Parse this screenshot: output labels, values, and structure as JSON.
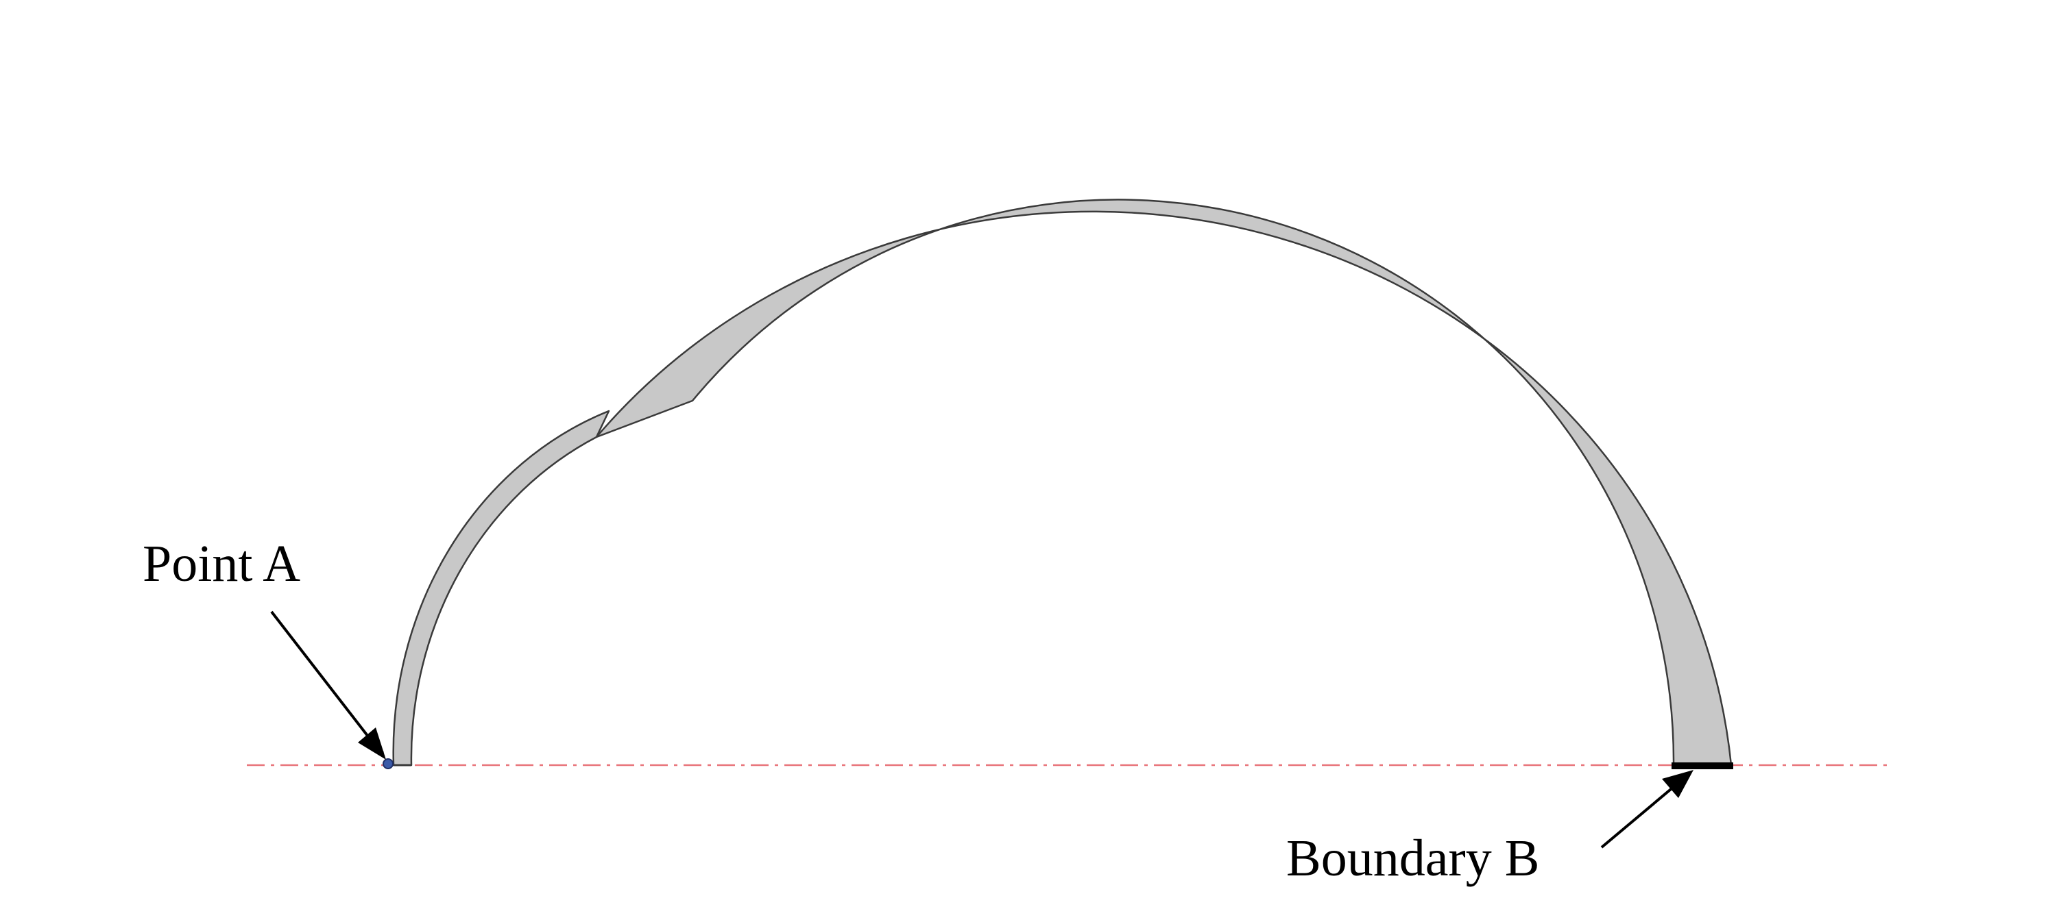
{
  "labels": {
    "point_a": "Point A",
    "boundary_b": "Boundary B"
  },
  "colors": {
    "shell_fill": "#c8c8c8",
    "shell_stroke": "#3a3a3a",
    "axis_line": "#e8747a",
    "point_marker": "#3b5aa8",
    "boundary": "#000000",
    "arrow": "#000000"
  }
}
